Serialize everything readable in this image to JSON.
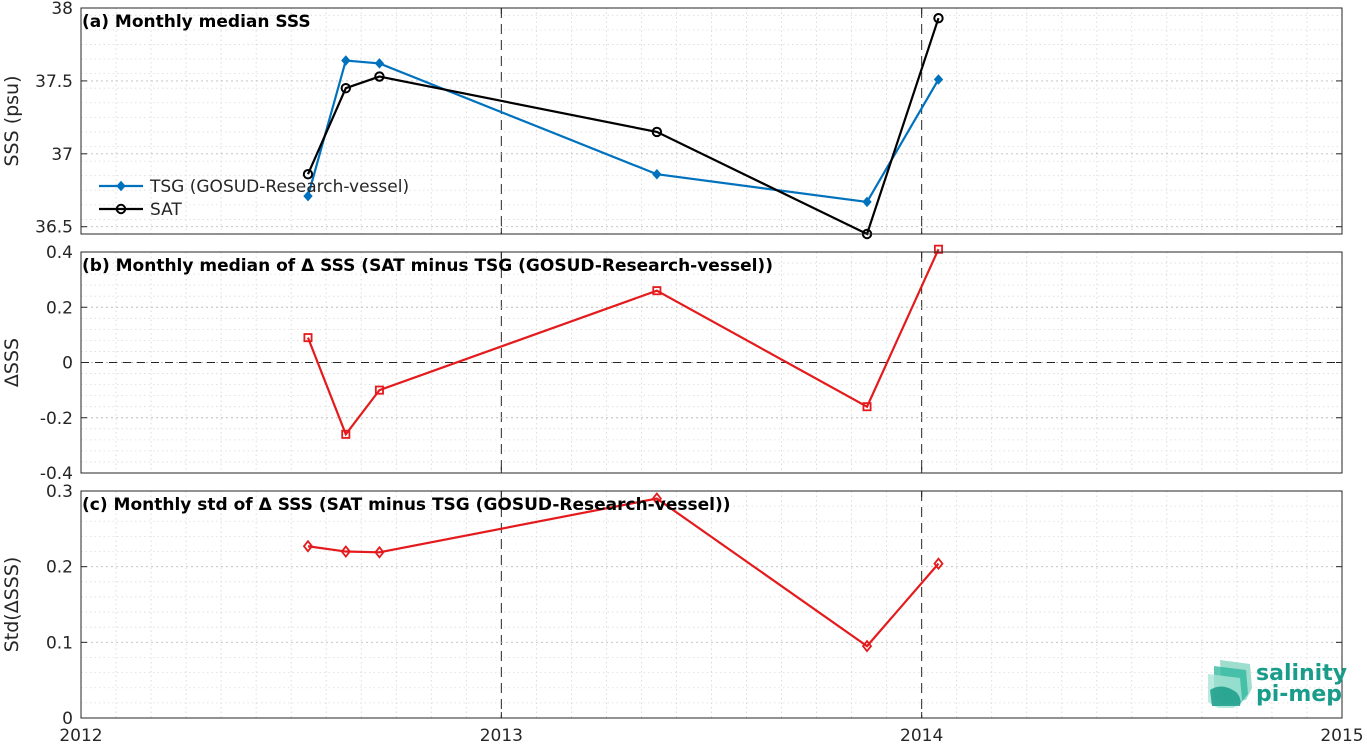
{
  "chart_data": [
    {
      "id": "a",
      "type": "line",
      "title": "(a) Monthly median SSS",
      "xlabel": "",
      "ylabel": "SSS (psu)",
      "xlim": [
        2012,
        2015
      ],
      "ylim": [
        36.45,
        38.0
      ],
      "yticks": [
        "36.5",
        "37",
        "37.5",
        "38"
      ],
      "legend": "left",
      "grid": true,
      "x": [
        2012.54,
        2012.63,
        2012.71,
        2013.37,
        2013.87,
        2014.04
      ],
      "series": [
        {
          "name": "TSG (GOSUD-Research-vessel)",
          "color": "#0072bd",
          "marker": "diamond",
          "values": [
            36.71,
            37.64,
            37.62,
            36.86,
            36.67,
            37.51
          ]
        },
        {
          "name": "SAT",
          "color": "#000000",
          "marker": "circle",
          "values": [
            36.86,
            37.45,
            37.53,
            37.15,
            36.45,
            37.93
          ]
        }
      ]
    },
    {
      "id": "b",
      "type": "line",
      "title": "(b) Monthly median of Δ SSS (SAT minus TSG (GOSUD-Research-vessel))",
      "xlabel": "",
      "ylabel": "ΔSSS",
      "xlim": [
        2012,
        2015
      ],
      "ylim": [
        -0.4,
        0.4
      ],
      "yticks": [
        "-0.4",
        "-0.2",
        "0",
        "0.2",
        "0.4"
      ],
      "grid": true,
      "x": [
        2012.54,
        2012.63,
        2012.71,
        2013.37,
        2013.87,
        2014.04
      ],
      "series": [
        {
          "name": "",
          "color": "#e41a1c",
          "marker": "square",
          "values": [
            0.09,
            -0.26,
            -0.1,
            0.26,
            -0.16,
            0.41
          ]
        }
      ]
    },
    {
      "id": "c",
      "type": "line",
      "title": "(c) Monthly std of Δ SSS (SAT minus TSG (GOSUD-Research-vessel))",
      "xlabel": "",
      "ylabel": "Std(ΔSSS)",
      "xlim": [
        2012,
        2015
      ],
      "ylim": [
        0,
        0.3
      ],
      "yticks": [
        "0",
        "0.1",
        "0.2",
        "0.3"
      ],
      "xticks": [
        "2012",
        "2013",
        "2014",
        "2015"
      ],
      "grid": true,
      "x": [
        2012.54,
        2012.63,
        2012.71,
        2013.37,
        2013.87,
        2014.04
      ],
      "series": [
        {
          "name": "",
          "color": "#e41a1c",
          "marker": "diamond-open",
          "values": [
            0.227,
            0.22,
            0.219,
            0.29,
            0.095,
            0.204
          ]
        }
      ]
    }
  ],
  "logo": {
    "line1": "salinity",
    "line2": "pi-mep",
    "color": "#1a9c8a"
  }
}
